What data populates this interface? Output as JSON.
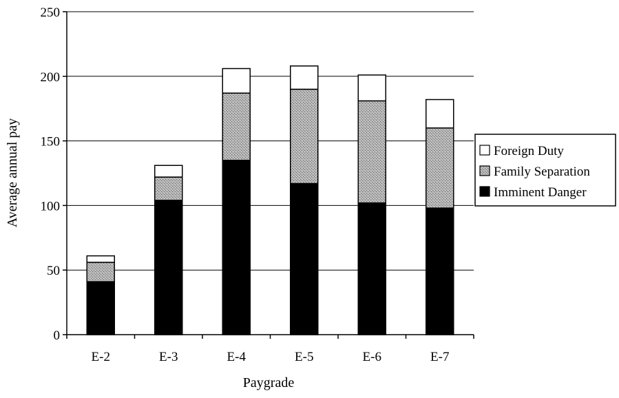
{
  "chart_data": {
    "type": "bar",
    "stacked": true,
    "title": "",
    "xlabel": "Paygrade",
    "ylabel": "Average annual pay",
    "ylim": [
      0,
      250
    ],
    "yticks": [
      0,
      50,
      100,
      150,
      200,
      250
    ],
    "grid": true,
    "legend_position": "right",
    "categories": [
      "E-2",
      "E-3",
      "E-4",
      "E-5",
      "E-6",
      "E-7"
    ],
    "series": [
      {
        "name": "Imminent Danger",
        "values": [
          41,
          104,
          135,
          117,
          102,
          98
        ],
        "color": "#000000",
        "pattern": "solid"
      },
      {
        "name": "Family Separation",
        "values": [
          15,
          18,
          52,
          73,
          79,
          62
        ],
        "color": "#9a9a9a",
        "pattern": "stipple"
      },
      {
        "name": "Foreign Duty",
        "values": [
          5,
          9,
          19,
          18,
          20,
          22
        ],
        "color": "#ffffff",
        "pattern": "none"
      }
    ],
    "legend_order": [
      "Foreign Duty",
      "Family Separation",
      "Imminent Danger"
    ]
  }
}
